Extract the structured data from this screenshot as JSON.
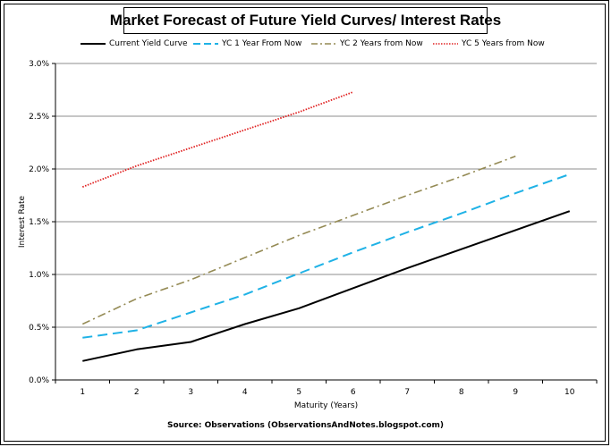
{
  "chart_data": {
    "type": "line",
    "title": "Market Forecast of Future Yield Curves/ Interest Rates",
    "xlabel": "Maturity (Years)",
    "ylabel": "Interest Rate",
    "x": [
      1,
      2,
      3,
      4,
      5,
      6,
      7,
      8,
      9,
      10
    ],
    "ylim": [
      0,
      0.03
    ],
    "y_ticks": [
      "0.0%",
      "0.5%",
      "1.0%",
      "1.5%",
      "2.0%",
      "2.5%",
      "3.0%"
    ],
    "grid": true,
    "legend_position": "top",
    "series": [
      {
        "name": "Current Yield Curve",
        "color": "#000000",
        "style": "solid",
        "x": [
          1,
          2,
          3,
          4,
          5,
          6,
          7,
          8,
          9,
          10
        ],
        "values": [
          0.0018,
          0.0029,
          0.0036,
          0.0053,
          0.0068,
          0.0087,
          0.0106,
          0.0124,
          0.0142,
          0.016
        ]
      },
      {
        "name": "YC 1 Year From Now",
        "color": "#1fb2e6",
        "style": "dash",
        "x": [
          1,
          2,
          3,
          4,
          5,
          6,
          7,
          8,
          9,
          10
        ],
        "values": [
          0.004,
          0.0047,
          0.0064,
          0.0081,
          0.0101,
          0.0121,
          0.014,
          0.0158,
          0.0177,
          0.0195
        ]
      },
      {
        "name": "YC 2 Years from Now",
        "color": "#948a54",
        "style": "dashdot",
        "x": [
          1,
          2,
          3,
          4,
          5,
          6,
          7,
          8,
          9
        ],
        "values": [
          0.0053,
          0.0077,
          0.0095,
          0.0116,
          0.0137,
          0.0156,
          0.0175,
          0.0193,
          0.0212
        ]
      },
      {
        "name": "YC 5 Years from Now",
        "color": "#e02020",
        "style": "dot",
        "x": [
          1,
          2,
          3,
          4,
          5,
          6
        ],
        "values": [
          0.0183,
          0.0203,
          0.022,
          0.0237,
          0.0254,
          0.0273
        ]
      }
    ]
  },
  "source_text": "Source: Observations (ObservationsAndNotes.blogspot.com)"
}
